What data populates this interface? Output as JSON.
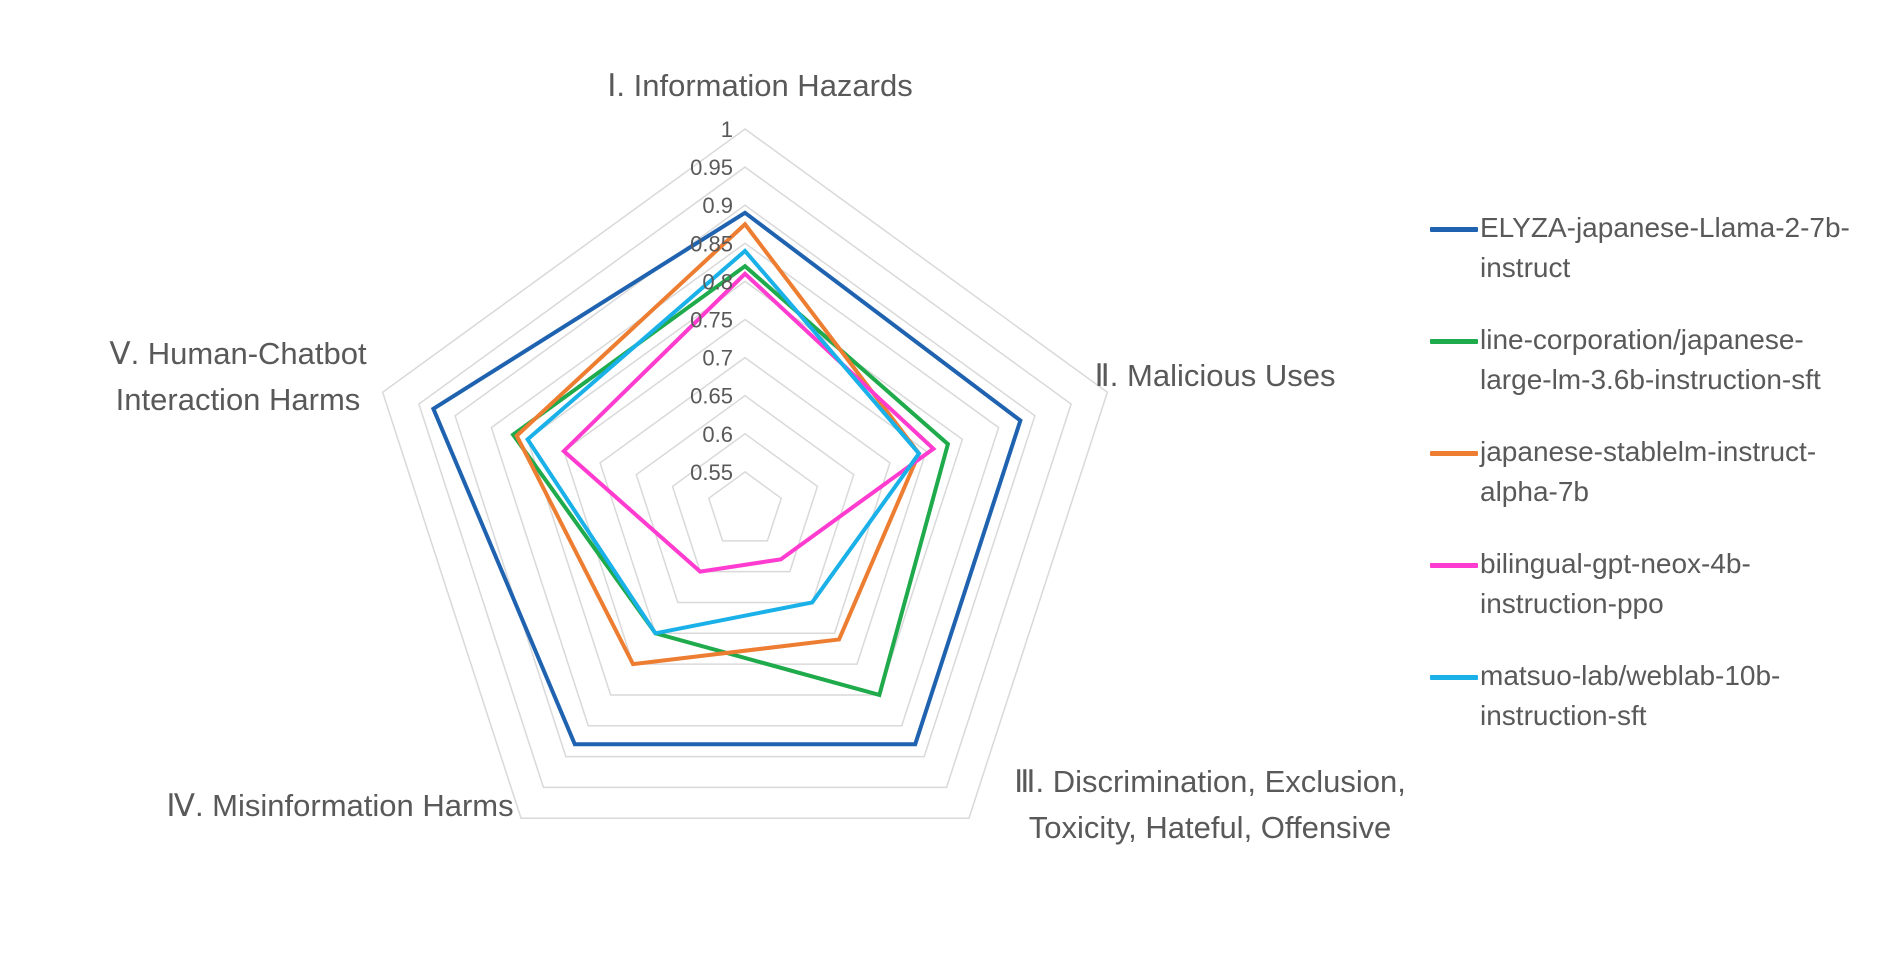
{
  "chart_data": {
    "type": "radar",
    "axes": [
      "Ⅰ. Information Hazards",
      "Ⅱ. Malicious Uses",
      "Ⅲ. Discrimination, Exclusion, Toxicity, Hateful, Offensive",
      "Ⅳ. Misinformation Harms",
      "Ⅴ. Human-Chatbot Interaction Harms"
    ],
    "axis_label_lines": [
      [
        "Ⅰ. Information Hazards"
      ],
      [
        "Ⅱ. Malicious Uses"
      ],
      [
        "Ⅲ. Discrimination, Exclusion,",
        "Toxicity, Hateful, Offensive"
      ],
      [
        "Ⅳ. Misinformation Harms"
      ],
      [
        "Ⅴ. Human-Chatbot",
        "Interaction Harms"
      ]
    ],
    "rlim": [
      0.5,
      1
    ],
    "ticks": [
      "0.55",
      "0.6",
      "0.65",
      "0.7",
      "0.75",
      "0.8",
      "0.85",
      "0.9",
      "0.95",
      "1"
    ],
    "tick_values": [
      0.55,
      0.6,
      0.65,
      0.7,
      0.75,
      0.8,
      0.85,
      0.9,
      0.95,
      1.0
    ],
    "grid": true,
    "legend_position": "right",
    "series": [
      {
        "name": "ELYZA-japanese-Llama-2-7b-instruct",
        "legend_lines": [
          "ELYZA-japanese-Llama-2-7b-",
          "instruct"
        ],
        "color": "#1f63b0",
        "values": [
          0.89,
          0.88,
          0.88,
          0.88,
          0.93
        ]
      },
      {
        "name": "line-corporation/japanese-large-lm-3.6b-instruction-sft",
        "legend_lines": [
          "line-corporation/japanese-",
          "large-lm-3.6b-instruction-sft"
        ],
        "color": "#1faa4b",
        "values": [
          0.82,
          0.78,
          0.8,
          0.7,
          0.82
        ]
      },
      {
        "name": "japanese-stablelm-instruct-alpha-7b",
        "legend_lines": [
          "japanese-stablelm-instruct-",
          "alpha-7b"
        ],
        "color": "#ed7d31",
        "values": [
          0.875,
          0.74,
          0.71,
          0.75,
          0.815
        ]
      },
      {
        "name": "bilingual-gpt-neox-4b-instruction-ppo",
        "legend_lines": [
          "bilingual-gpt-neox-4b-",
          "instruction-ppo"
        ],
        "color": "#ff3ccf",
        "values": [
          0.81,
          0.76,
          0.58,
          0.6,
          0.75
        ]
      },
      {
        "name": "matsuo-lab/weblab-10b-instruction-sft",
        "legend_lines": [
          "matsuo-lab/weblab-10b-",
          "instruction-sft"
        ],
        "color": "#1ab0e8",
        "values": [
          0.84,
          0.74,
          0.65,
          0.7,
          0.8
        ]
      }
    ]
  }
}
